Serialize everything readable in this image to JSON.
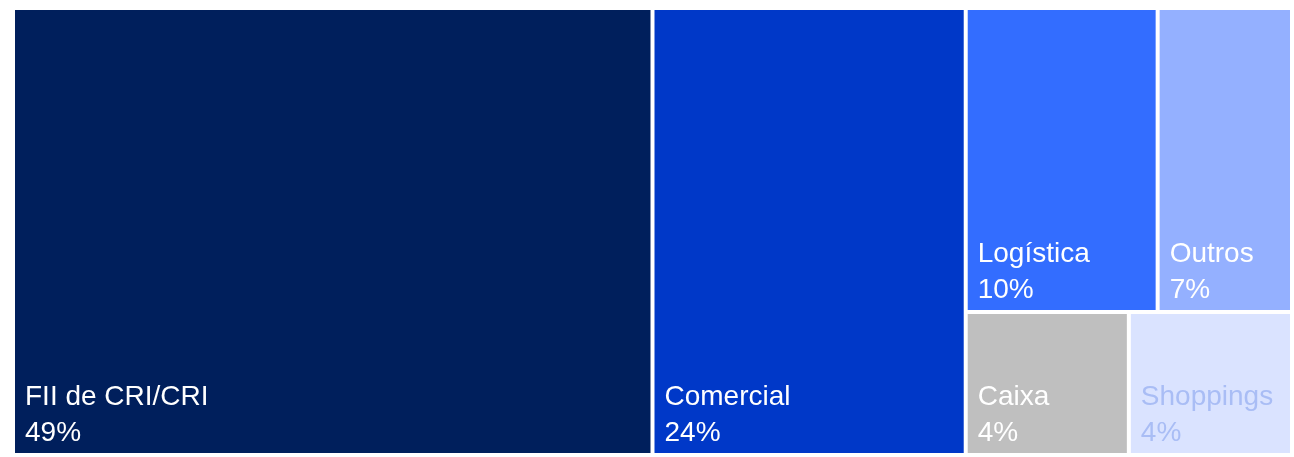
{
  "chart_data": {
    "type": "other",
    "categories": [
      "FII de CRI/CRI",
      "Comercial",
      "Logística",
      "Outros",
      "Caixa",
      "Shoppings"
    ],
    "values": [
      49,
      24,
      10,
      7,
      4,
      4
    ],
    "value_labels": [
      "49%",
      "24%",
      "10%",
      "7%",
      "4%",
      "4%"
    ],
    "colors": [
      "#001f5c",
      "#0038c8",
      "#336dff",
      "#94b0ff",
      "#bfbfbf",
      "#dae3ff"
    ]
  }
}
